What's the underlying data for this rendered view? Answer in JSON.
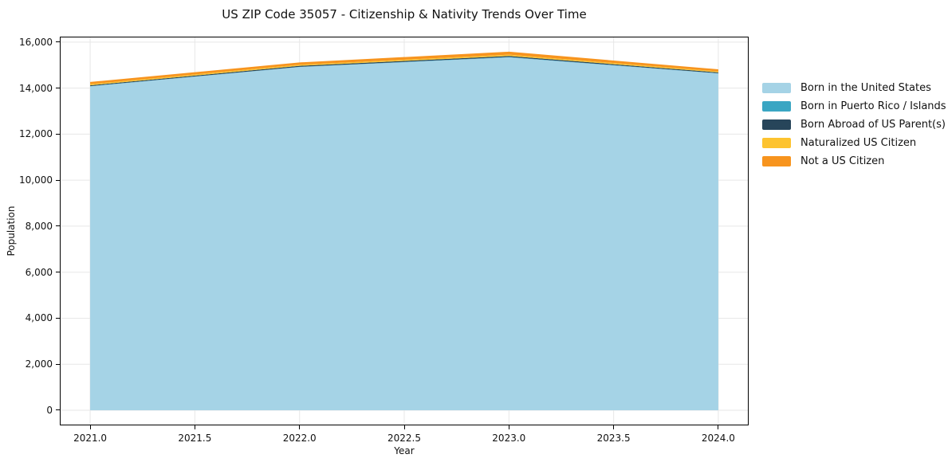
{
  "chart_data": {
    "type": "area",
    "stacked": true,
    "title": "US ZIP Code 35057 - Citizenship & Nativity Trends Over Time",
    "xlabel": "Year",
    "ylabel": "Population",
    "x": [
      2021,
      2022,
      2023,
      2024
    ],
    "series": [
      {
        "name": "Born in the United States",
        "color": "#a5d3e6",
        "values": [
          14080,
          14920,
          15340,
          14640
        ]
      },
      {
        "name": "Born in Puerto Rico / Islands",
        "color": "#3aa6c3",
        "values": [
          10,
          10,
          15,
          10
        ]
      },
      {
        "name": "Born Abroad of US Parent(s)",
        "color": "#27455a",
        "values": [
          35,
          40,
          45,
          35
        ]
      },
      {
        "name": "Naturalized US Citizen",
        "color": "#fdc32f",
        "values": [
          50,
          50,
          55,
          45
        ]
      },
      {
        "name": "Not a US Citizen",
        "color": "#f7941e",
        "values": [
          95,
          100,
          130,
          90
        ]
      }
    ],
    "totals": [
      14270,
      15120,
      15585,
      14820
    ],
    "xlim": [
      2020.855,
      2024.145
    ],
    "ylim": [
      -660,
      16240
    ],
    "xticks": [
      2021.0,
      2021.5,
      2022.0,
      2022.5,
      2023.0,
      2023.5,
      2024.0
    ],
    "xtick_labels": [
      "2021.0",
      "2021.5",
      "2022.0",
      "2022.5",
      "2023.0",
      "2023.5",
      "2024.0"
    ],
    "yticks": [
      0,
      2000,
      4000,
      6000,
      8000,
      10000,
      12000,
      14000,
      16000
    ],
    "ytick_labels": [
      "0",
      "2,000",
      "4,000",
      "6,000",
      "8,000",
      "10,000",
      "12,000",
      "14,000",
      "16,000"
    ],
    "grid": true,
    "grid_color": "#e7e7e7",
    "axis_color": "#000000",
    "legend_position": "right"
  }
}
